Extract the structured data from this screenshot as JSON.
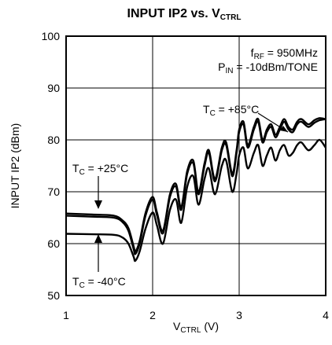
{
  "chart_data": {
    "type": "line",
    "title": {
      "main": "INPUT IP2 vs. V",
      "sub": "CTRL"
    },
    "xlabel": {
      "main": "V",
      "sub": "CTRL",
      "unit": " (V)"
    },
    "ylabel": "INPUT IP2 (dBm)",
    "xlim": [
      1,
      4
    ],
    "ylim": [
      50,
      100
    ],
    "xticks": [
      "1",
      "2",
      "3",
      "4"
    ],
    "yticks": [
      "50",
      "60",
      "70",
      "80",
      "90",
      "100"
    ],
    "grid": true,
    "conditions": {
      "line1": {
        "pre": "f",
        "sub": "RF",
        "post": " = 950MHz"
      },
      "line2": {
        "pre": "P",
        "sub": "IN",
        "post": " = -10dBm/TONE"
      }
    },
    "annotations": {
      "hot": {
        "pre": "T",
        "sub": "C",
        "post": " = +85°C"
      },
      "room": {
        "pre": "T",
        "sub": "C",
        "post": " = +25°C"
      },
      "cold": {
        "pre": "T",
        "sub": "C",
        "post": " = -40°C"
      }
    },
    "series": [
      {
        "label_ref": "room",
        "color": "#000000",
        "x": [
          1.0,
          1.3,
          1.55,
          1.65,
          1.72,
          1.78,
          1.8,
          1.85,
          1.92,
          2.0,
          2.05,
          2.12,
          2.2,
          2.27,
          2.33,
          2.4,
          2.47,
          2.53,
          2.6,
          2.65,
          2.72,
          2.8,
          2.85,
          2.92,
          2.97,
          3.0,
          3.05,
          3.1,
          3.17,
          3.22,
          3.27,
          3.32,
          3.37,
          3.42,
          3.47,
          3.52,
          3.57,
          3.62,
          3.67,
          3.72,
          3.8,
          3.87,
          3.93,
          4.0
        ],
        "y": [
          65.8,
          65.6,
          65.4,
          64.5,
          63.0,
          59.5,
          58.5,
          60.5,
          66.0,
          69.0,
          66.0,
          62.5,
          69.5,
          71.5,
          67.0,
          74.0,
          76.0,
          70.0,
          75.5,
          78.0,
          72.5,
          78.5,
          79.5,
          73.5,
          78.0,
          82.0,
          83.5,
          79.0,
          82.5,
          84.0,
          80.0,
          82.0,
          83.0,
          81.0,
          82.5,
          84.0,
          82.5,
          82.0,
          83.5,
          84.0,
          83.0,
          83.8,
          84.2,
          84.0
        ]
      },
      {
        "label_ref": "hot",
        "color": "#000000",
        "x": [
          1.0,
          1.3,
          1.55,
          1.65,
          1.72,
          1.78,
          1.8,
          1.85,
          1.92,
          2.0,
          2.05,
          2.12,
          2.2,
          2.27,
          2.33,
          2.4,
          2.47,
          2.53,
          2.6,
          2.65,
          2.72,
          2.8,
          2.85,
          2.92,
          2.97,
          3.0,
          3.05,
          3.1,
          3.17,
          3.22,
          3.27,
          3.32,
          3.37,
          3.42,
          3.47,
          3.52,
          3.57,
          3.62,
          3.67,
          3.72,
          3.8,
          3.87,
          3.93,
          4.0
        ],
        "y": [
          65.4,
          65.2,
          65.0,
          64.2,
          62.5,
          59.0,
          58.0,
          60.0,
          65.5,
          68.5,
          65.5,
          62.0,
          69.0,
          71.0,
          66.5,
          73.5,
          75.5,
          69.5,
          75.0,
          77.5,
          72.0,
          78.0,
          79.0,
          73.0,
          77.5,
          81.5,
          83.0,
          78.5,
          82.0,
          83.5,
          79.5,
          81.5,
          82.5,
          80.5,
          82.0,
          83.5,
          82.0,
          81.5,
          83.0,
          83.5,
          82.5,
          83.3,
          83.8,
          84.0
        ]
      },
      {
        "label_ref": "cold",
        "color": "#000000",
        "x": [
          1.0,
          1.3,
          1.55,
          1.65,
          1.72,
          1.78,
          1.8,
          1.85,
          1.92,
          2.0,
          2.05,
          2.12,
          2.2,
          2.27,
          2.33,
          2.4,
          2.47,
          2.53,
          2.6,
          2.65,
          2.72,
          2.8,
          2.85,
          2.92,
          2.97,
          3.0,
          3.05,
          3.1,
          3.17,
          3.22,
          3.27,
          3.32,
          3.37,
          3.42,
          3.47,
          3.52,
          3.57,
          3.62,
          3.67,
          3.72,
          3.8,
          3.87,
          3.93,
          4.0
        ],
        "y": [
          61.9,
          61.8,
          61.7,
          61.2,
          60.0,
          57.5,
          56.7,
          58.5,
          63.0,
          66.0,
          63.5,
          60.0,
          66.5,
          68.5,
          64.0,
          71.0,
          73.0,
          67.5,
          72.5,
          74.5,
          69.5,
          75.0,
          76.0,
          70.0,
          73.5,
          77.0,
          78.5,
          74.5,
          77.5,
          79.0,
          75.0,
          77.0,
          78.5,
          76.0,
          78.0,
          79.0,
          77.0,
          77.5,
          79.0,
          79.5,
          78.0,
          79.0,
          80.0,
          78.5
        ]
      }
    ]
  }
}
